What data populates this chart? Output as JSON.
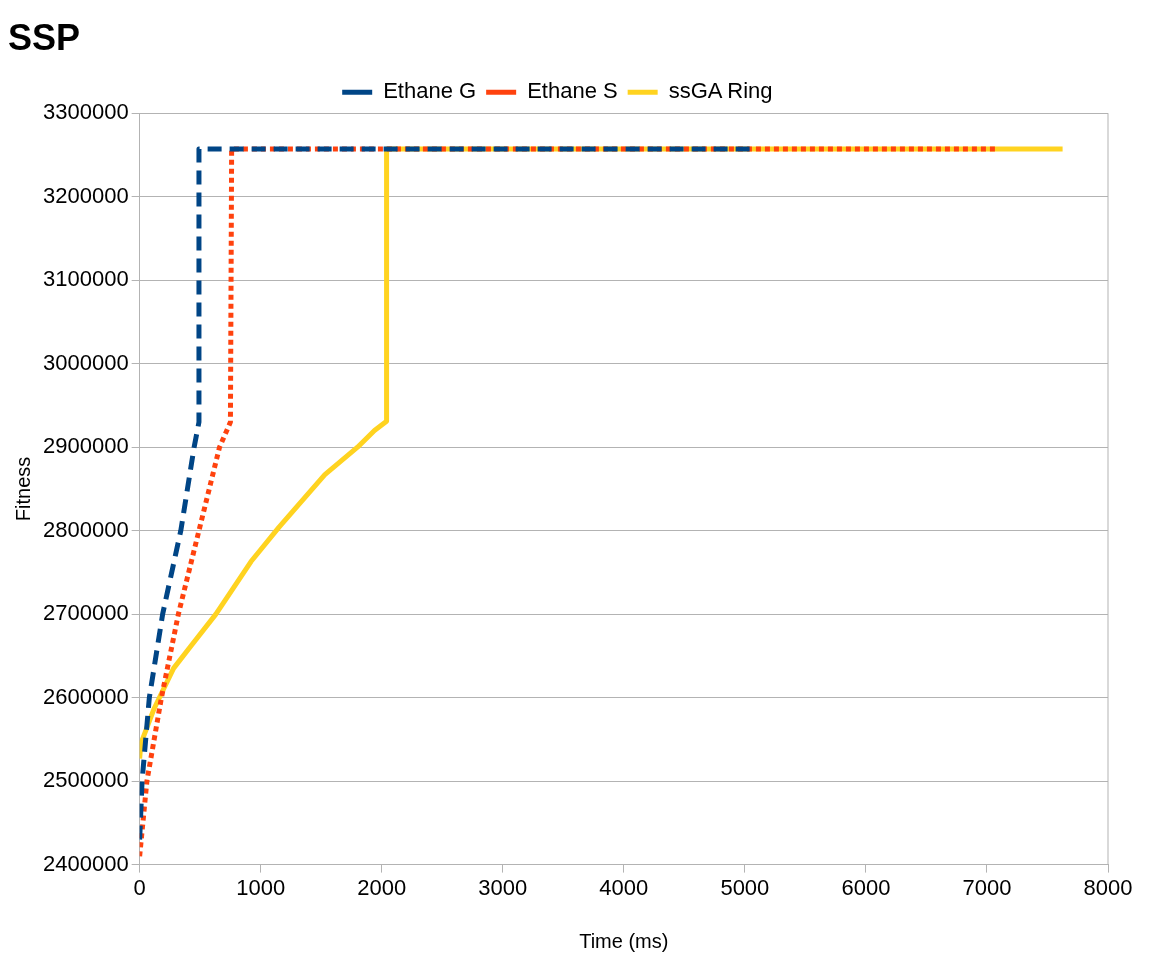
{
  "chart_data": {
    "type": "line",
    "title": "SSP",
    "xlabel": "Time (ms)",
    "ylabel": "Fitness",
    "xlim": [
      0,
      8000
    ],
    "xticks": [
      0,
      1000,
      2000,
      3000,
      4000,
      5000,
      6000,
      7000,
      8000
    ],
    "ylim": [
      2400000,
      3300000
    ],
    "yticks": [
      2400000,
      2500000,
      2600000,
      2700000,
      2800000,
      2900000,
      3000000,
      3100000,
      3200000,
      3300000
    ],
    "grid": "y",
    "legend": "top",
    "marker": "none",
    "series": [
      {
        "name": "Ethane G",
        "color": "#004586",
        "line_style": "dashed",
        "x": [
          0,
          20,
          80,
          190,
          340,
          450,
          490,
          490,
          5050
        ],
        "values": [
          2430000,
          2500000,
          2600000,
          2700000,
          2800000,
          2900000,
          2930000,
          3257000,
          3257000
        ]
      },
      {
        "name": "Ethane S",
        "color": "#ff420e",
        "line_style": "dotted",
        "x": [
          0,
          60,
          180,
          320,
          490,
          660,
          750,
          760,
          7075
        ],
        "values": [
          2410000,
          2500000,
          2600000,
          2700000,
          2800000,
          2900000,
          2930000,
          3257000,
          3257000
        ]
      },
      {
        "name": "ssGA Ring",
        "color": "#ffd320",
        "line_style": "solid",
        "x": [
          0,
          10,
          120,
          280,
          430,
          630,
          920,
          1150,
          1530,
          1800,
          1940,
          2040,
          2040,
          7625
        ],
        "values": [
          2527000,
          2545000,
          2587000,
          2635000,
          2663000,
          2700000,
          2763000,
          2804000,
          2867000,
          2900000,
          2920000,
          2931000,
          3257000,
          3257000
        ]
      }
    ]
  }
}
